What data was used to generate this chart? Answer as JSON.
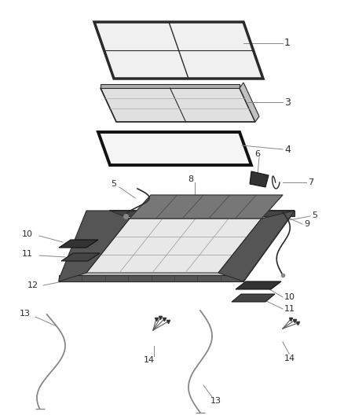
{
  "background_color": "#ffffff",
  "line_color": "#2a2a2a",
  "gray_line": "#888888",
  "dark_fill": "#333333",
  "mid_fill": "#666666",
  "light_fill": "#cccccc",
  "panel1_fill": "#e8e8e8",
  "panel3_fill": "#d0d0d0",
  "panel4_fill": "#555555",
  "frame_fill": "#aaaaaa",
  "fig_w": 4.38,
  "fig_h": 5.33,
  "dpi": 100
}
